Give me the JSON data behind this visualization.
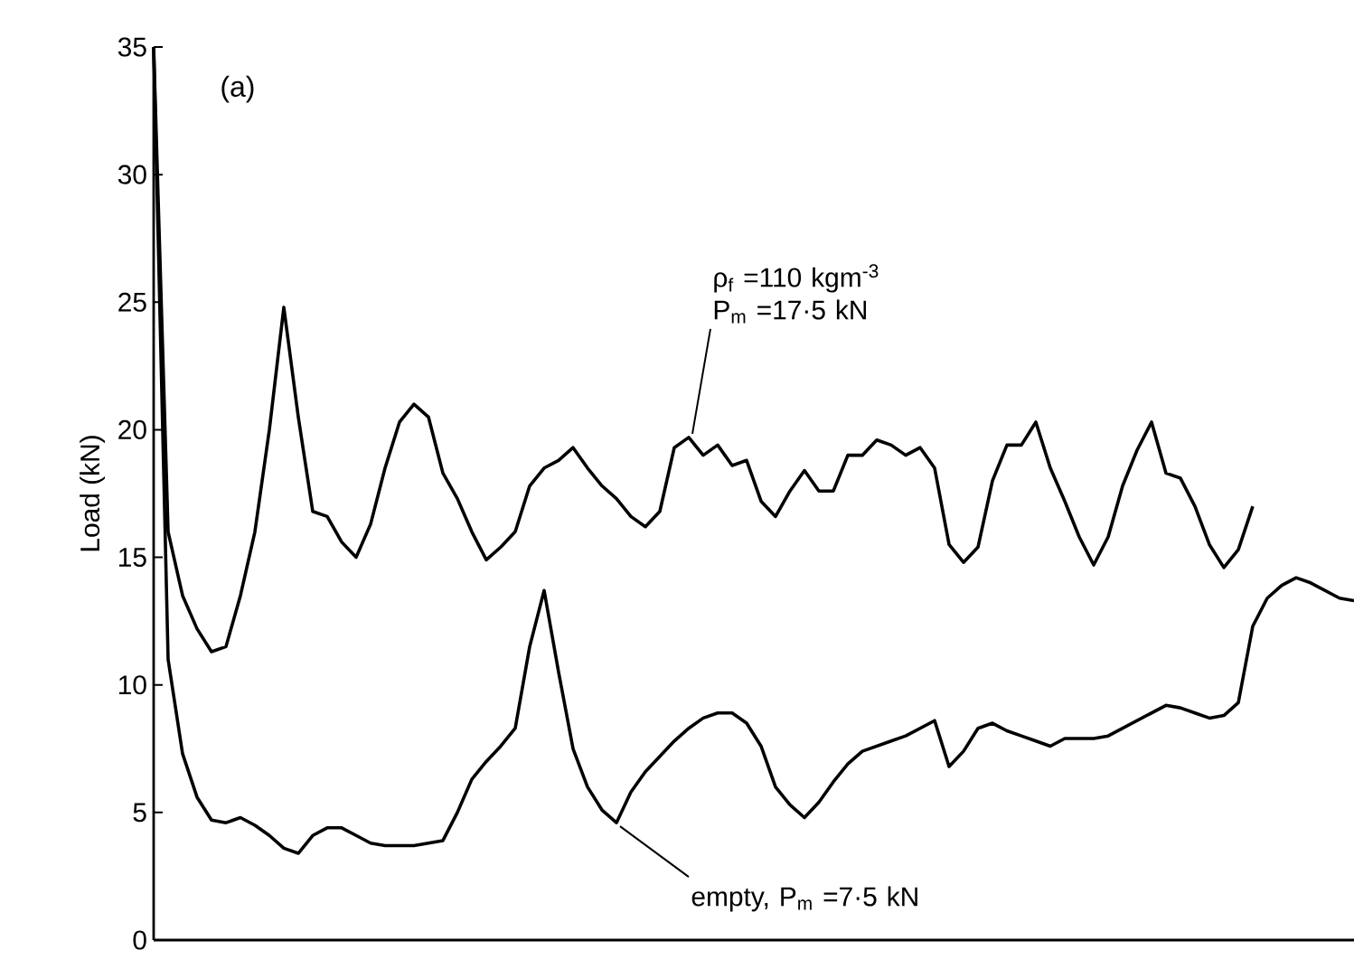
{
  "chart_data": {
    "type": "line",
    "ylabel": "Load (kN)",
    "annotations": [
      "(a)"
    ],
    "categories": [
      null,
      null,
      null,
      null,
      null,
      null,
      null,
      null,
      null,
      null,
      null,
      null,
      null,
      null,
      null,
      null,
      null,
      null,
      null,
      null,
      null,
      null,
      null,
      null,
      null,
      null,
      null,
      null,
      null,
      null,
      null,
      null,
      null,
      null,
      null,
      null,
      null,
      null,
      null,
      null,
      null,
      null,
      null,
      null,
      null,
      null,
      null,
      null,
      null,
      null,
      null,
      null,
      null,
      null,
      null,
      null,
      null,
      null,
      null,
      null,
      null,
      null,
      null,
      null,
      null,
      null,
      null,
      null,
      null,
      null,
      null,
      null,
      null,
      null,
      null,
      null,
      null,
      null,
      null,
      null,
      null,
      null,
      null,
      null
    ],
    "ylim": [
      0,
      35
    ],
    "yticks": [
      0,
      5,
      10,
      15,
      20,
      25,
      30,
      35
    ],
    "series": [
      {
        "name": "ρ$_{f}$ =110 kgm$^{-3}$ P$_{m}$ =17·5 kN",
        "color": "#000000",
        "values": [
          35,
          16,
          13.5,
          12.2,
          11.3,
          11.5,
          13.5,
          16,
          20,
          24.8,
          20.5,
          16.8,
          16.6,
          15.6,
          15.0,
          16.3,
          18.5,
          20.3,
          21.0,
          20.5,
          18.3,
          17.3,
          16.0,
          14.9,
          15.4,
          16.0,
          17.8,
          18.5,
          18.8,
          19.3,
          18.5,
          17.8,
          17.3,
          16.6,
          16.2,
          16.8,
          19.3,
          19.7,
          19.0,
          19.4,
          18.6,
          18.8,
          17.2,
          16.6,
          17.6,
          18.4,
          17.6,
          17.6,
          19.0,
          19.0,
          19.6,
          19.4,
          19.0,
          19.3,
          18.5,
          15.5,
          14.8,
          15.4,
          18.0,
          19.4,
          19.4,
          20.3,
          18.5,
          17.2,
          15.8,
          14.7,
          15.8,
          17.8,
          19.2,
          20.3,
          18.3,
          18.1,
          17.0,
          15.5,
          14.6,
          15.3,
          17.0,
          null,
          null,
          null,
          null,
          null,
          null,
          null
        ]
      },
      {
        "name": "empty, P$_{m}$ =7·5 kN",
        "color": "#000000",
        "values": [
          35,
          11,
          7.3,
          5.6,
          4.7,
          4.6,
          4.8,
          4.5,
          4.1,
          3.6,
          3.4,
          4.1,
          4.4,
          4.4,
          4.1,
          3.8,
          3.7,
          3.7,
          3.7,
          3.8,
          3.9,
          5.0,
          6.3,
          7.0,
          7.6,
          8.3,
          11.5,
          13.7,
          10.5,
          7.5,
          6.0,
          5.1,
          4.6,
          5.8,
          6.6,
          7.2,
          7.8,
          8.3,
          8.7,
          8.9,
          8.9,
          8.5,
          7.6,
          6.0,
          5.3,
          4.8,
          5.4,
          6.2,
          6.9,
          7.4,
          7.6,
          7.8,
          8.0,
          8.3,
          8.6,
          6.8,
          7.4,
          8.3,
          8.5,
          8.2,
          8.0,
          7.8,
          7.6,
          7.9,
          7.9,
          7.9,
          8.0,
          8.3,
          8.6,
          8.9,
          9.2,
          9.1,
          8.9,
          8.7,
          8.8,
          9.3,
          12.3,
          13.4,
          13.9,
          14.2,
          14.0,
          13.7,
          13.4,
          13.3
        ]
      }
    ]
  }
}
